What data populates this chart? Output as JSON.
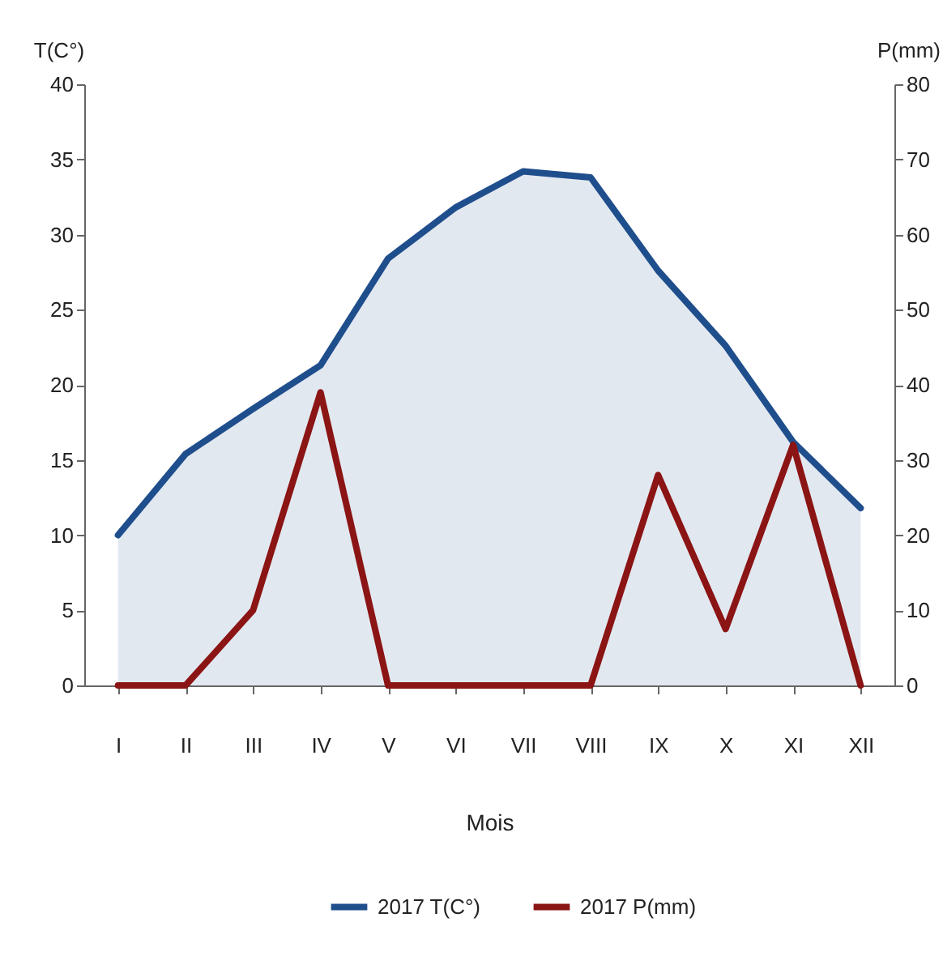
{
  "chart_data": {
    "type": "line",
    "xlabel": "Mois",
    "ylabel": "T(C°)",
    "y2label": "P(mm)",
    "categories": [
      "I",
      "II",
      "III",
      "IV",
      "V",
      "VI",
      "VII",
      "VIII",
      "IX",
      "X",
      "XI",
      "XII"
    ],
    "series": [
      {
        "name": "2017 T(C°)",
        "type": "area",
        "color": "#1f4e8c",
        "values": [
          10,
          15.4,
          18.4,
          21.3,
          28.4,
          31.8,
          34.2,
          33.8,
          27.6,
          22.6,
          16.2,
          11.8
        ]
      },
      {
        "name": "2017 P(mm)",
        "axis": "y2",
        "color": "#8b1414",
        "values": [
          0,
          0,
          10,
          39,
          0,
          0,
          0,
          0,
          28,
          7.5,
          32,
          0
        ]
      }
    ],
    "ylim": [
      0,
      40
    ],
    "yticks": [
      0,
      5,
      10,
      15,
      20,
      25,
      30,
      35,
      40
    ],
    "y2lim": [
      0,
      80
    ],
    "y2ticks": [
      0,
      10,
      20,
      30,
      40,
      50,
      60,
      70,
      80
    ],
    "legend": "bottom"
  }
}
